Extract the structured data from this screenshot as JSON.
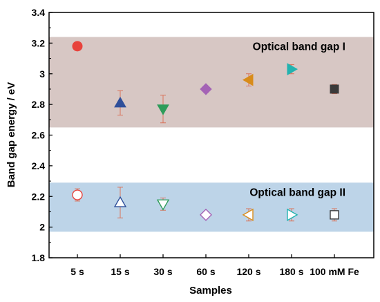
{
  "chart_data": {
    "type": "scatter",
    "xlabel": "Samples",
    "ylabel": "Band gap energy / eV",
    "categories": [
      "5 s",
      "15 s",
      "30 s",
      "60 s",
      "120 s",
      "180 s",
      "100 mM Fe"
    ],
    "ylim": [
      1.8,
      3.4
    ],
    "yticks": [
      "1.8",
      "2",
      "2.2",
      "2.4",
      "2.6",
      "2.8",
      "3",
      "3.2",
      "3.4"
    ],
    "grid": false,
    "bands": [
      {
        "label": "Optical band gap I",
        "range": [
          2.65,
          3.24
        ],
        "color": "#d7c7c4"
      },
      {
        "label": "Optical band gap II",
        "range": [
          1.97,
          2.29
        ],
        "color": "#bdd4e8"
      }
    ],
    "series": [
      {
        "values": [
          3.18,
          2.81,
          2.77,
          2.9,
          2.96,
          3.03,
          2.9
        ],
        "errors": [
          0.0,
          0.08,
          0.09,
          0.0,
          0.04,
          0.03,
          0.03
        ],
        "filled": true
      },
      {
        "values": [
          2.21,
          2.16,
          2.15,
          2.08,
          2.08,
          2.08,
          2.08
        ],
        "errors": [
          0.04,
          0.1,
          0.04,
          0.0,
          0.04,
          0.04,
          0.04
        ],
        "filled": false
      }
    ],
    "markers": [
      {
        "shape": "circle",
        "color": "#e8433c"
      },
      {
        "shape": "triangle-up",
        "color": "#2f4f9a"
      },
      {
        "shape": "triangle-down",
        "color": "#2e9c5a"
      },
      {
        "shape": "diamond",
        "color": "#a463b5"
      },
      {
        "shape": "triangle-left",
        "color": "#d88c1a"
      },
      {
        "shape": "triangle-right",
        "color": "#22b3b0"
      },
      {
        "shape": "square",
        "color": "#3b3b3b"
      }
    ],
    "errorbar_color": "#d9735a"
  }
}
